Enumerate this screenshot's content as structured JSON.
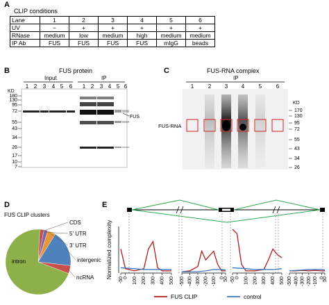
{
  "panelA": {
    "letter": "A",
    "title": "CLIP conditions",
    "rows": [
      {
        "label": "Lane",
        "cells": [
          "1",
          "2",
          "3",
          "4",
          "5",
          "6"
        ]
      },
      {
        "label": "UV",
        "cells": [
          "−",
          "+",
          "+",
          "+",
          "+",
          "+"
        ]
      },
      {
        "label": "RNase",
        "cells": [
          "medium",
          "low",
          "medium",
          "high",
          "medium",
          "medium"
        ]
      },
      {
        "label": "IP Ab",
        "cells": [
          "FUS",
          "FUS",
          "FUS",
          "FUS",
          "mIgG",
          "beads"
        ]
      }
    ]
  },
  "panelB": {
    "letter": "B",
    "title": "FUS protein",
    "input_label": "Input",
    "ip_label": "IP",
    "kd_label": "KD",
    "lanes": [
      "1",
      "2",
      "3",
      "4",
      "5",
      "6",
      "1",
      "2",
      "3",
      "4",
      "5",
      "6"
    ],
    "markers": [
      "180",
      "130",
      "95",
      "72",
      "55",
      "43",
      "34",
      "26",
      "17",
      "10",
      "7"
    ],
    "fus_label": "FUS"
  },
  "panelC": {
    "letter": "C",
    "title": "FUS-RNA complex",
    "ip_label": "IP",
    "kd_label": "KD",
    "lanes": [
      "1",
      "2",
      "3",
      "4",
      "5",
      "6"
    ],
    "markers": [
      "170",
      "130",
      "95",
      "72",
      "55",
      "43",
      "34",
      "26"
    ],
    "complex_label": "FUS-RNA"
  },
  "panelD": {
    "letter": "D",
    "title": "FUS CLIP clusters",
    "slices": [
      {
        "label": "intron",
        "value": 70,
        "color": "#8db04a"
      },
      {
        "label": "CDS",
        "value": 2,
        "color": "#c0504d"
      },
      {
        "label": "5' UTR",
        "value": 2,
        "color": "#8064a2"
      },
      {
        "label": "3' UTR",
        "value": 4,
        "color": "#e8963c"
      },
      {
        "label": "intergenic",
        "value": 18,
        "color": "#4f81bd"
      },
      {
        "label": "ncRNA",
        "value": 4,
        "color": "#c8504a"
      }
    ]
  },
  "panelE": {
    "letter": "E",
    "ylabel": "Normalized complexity",
    "segments": [
      {
        "ticks": [
          "-50",
          "0",
          "100",
          "200",
          "300",
          "400",
          "500"
        ]
      },
      {
        "ticks": [
          "-500",
          "-400",
          "-300",
          "-200",
          "-100",
          "0",
          "50"
        ]
      },
      {
        "ticks": [
          "-50",
          "0",
          "100",
          "200",
          "300",
          "400",
          "500"
        ]
      },
      {
        "ticks": [
          "-500",
          "-400",
          "-300",
          "-200",
          "-100",
          "0",
          "50"
        ]
      }
    ],
    "legend": [
      {
        "label": "FUS CLIP",
        "color": "#b01c1c"
      },
      {
        "label": "control",
        "color": "#3a78c2"
      }
    ],
    "colors": {
      "gene_model": "#2ca84a",
      "clip": "#b01c1c",
      "control": "#3a78c2"
    }
  },
  "chart_data": {
    "type": "line",
    "ylabel": "Normalized complexity",
    "series": [
      {
        "name": "FUS CLIP",
        "segments": [
          [
            {
              "x": -50,
              "y": 0.55
            },
            {
              "x": 0,
              "y": 0.1
            },
            {
              "x": 100,
              "y": 0.05
            },
            {
              "x": 200,
              "y": 0.1
            },
            {
              "x": 250,
              "y": 0.55
            },
            {
              "x": 300,
              "y": 0.72
            },
            {
              "x": 350,
              "y": 0.12
            },
            {
              "x": 400,
              "y": 0.05
            },
            {
              "x": 500,
              "y": 0.05
            }
          ],
          [
            {
              "x": -500,
              "y": 0.03
            },
            {
              "x": -400,
              "y": 0.05
            },
            {
              "x": -300,
              "y": 0.15
            },
            {
              "x": -250,
              "y": 0.5
            },
            {
              "x": -200,
              "y": 0.3
            },
            {
              "x": -100,
              "y": 0.5
            },
            {
              "x": -50,
              "y": 0.2
            },
            {
              "x": 0,
              "y": 0.05
            },
            {
              "x": 50,
              "y": 0.05
            }
          ],
          [
            {
              "x": -50,
              "y": 1.0
            },
            {
              "x": 0,
              "y": 0.9
            },
            {
              "x": 50,
              "y": 0.2
            },
            {
              "x": 100,
              "y": 0.05
            },
            {
              "x": 200,
              "y": 0.05
            },
            {
              "x": 300,
              "y": 0.08
            },
            {
              "x": 350,
              "y": 0.3
            },
            {
              "x": 400,
              "y": 0.55
            },
            {
              "x": 450,
              "y": 0.42
            },
            {
              "x": 500,
              "y": 0.35
            }
          ],
          [
            {
              "x": -500,
              "y": 0.05
            },
            {
              "x": -400,
              "y": 0.05
            },
            {
              "x": -300,
              "y": 0.06
            },
            {
              "x": -200,
              "y": 0.05
            },
            {
              "x": -100,
              "y": 0.06
            },
            {
              "x": 0,
              "y": 0.05
            },
            {
              "x": 50,
              "y": 0.05
            }
          ]
        ]
      },
      {
        "name": "control",
        "segments": [
          [
            {
              "x": -50,
              "y": 0.12
            },
            {
              "x": 100,
              "y": 0.1
            },
            {
              "x": 200,
              "y": 0.08
            },
            {
              "x": 300,
              "y": 0.08
            },
            {
              "x": 400,
              "y": 0.08
            },
            {
              "x": 500,
              "y": 0.08
            }
          ],
          [
            {
              "x": -500,
              "y": 0.03
            },
            {
              "x": -400,
              "y": 0.03
            },
            {
              "x": -300,
              "y": 0.03
            },
            {
              "x": -200,
              "y": 0.05
            },
            {
              "x": -100,
              "y": 0.08
            },
            {
              "x": 0,
              "y": 0.08
            },
            {
              "x": 50,
              "y": 0.07
            }
          ],
          [
            {
              "x": -50,
              "y": 0.12
            },
            {
              "x": 100,
              "y": 0.1
            },
            {
              "x": 200,
              "y": 0.08
            },
            {
              "x": 300,
              "y": 0.08
            },
            {
              "x": 400,
              "y": 0.08
            },
            {
              "x": 500,
              "y": 0.1
            }
          ],
          [
            {
              "x": -500,
              "y": 0.05
            },
            {
              "x": -400,
              "y": 0.06
            },
            {
              "x": -300,
              "y": 0.07
            },
            {
              "x": -200,
              "y": 0.08
            },
            {
              "x": -100,
              "y": 0.08
            },
            {
              "x": 0,
              "y": 0.08
            },
            {
              "x": 50,
              "y": 0.07
            }
          ]
        ]
      }
    ],
    "segment_xranges": [
      [
        -50,
        500
      ],
      [
        -500,
        50
      ],
      [
        -50,
        500
      ],
      [
        -500,
        50
      ]
    ],
    "ylim": [
      0,
      1
    ]
  }
}
